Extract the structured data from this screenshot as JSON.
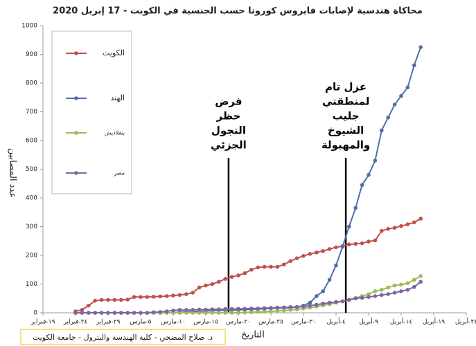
{
  "chart_data": {
    "type": "line",
    "title": "محاكاة هندسية لإصابات فايروس كورونا حسب الجنسية في الكويت -  17 إبريل 2020",
    "y_label": "عدد المصابين",
    "x_label": "التاريخ",
    "footer": "د. صلاح المضحي - كلية الهندسة والبترول - جامعة الكويت",
    "x": [
      5,
      6,
      7,
      8,
      9,
      10,
      11,
      12,
      13,
      14,
      15,
      16,
      17,
      18,
      19,
      20,
      21,
      22,
      23,
      24,
      25,
      26,
      27,
      28,
      29,
      30,
      31,
      32,
      33,
      34,
      35,
      36,
      37,
      38,
      39,
      40,
      41,
      42,
      43,
      44,
      45,
      46,
      47,
      48,
      49,
      50,
      51,
      52,
      53,
      54,
      55,
      56,
      57,
      58
    ],
    "series": [
      {
        "name": "الكويت",
        "color": "#c0504d",
        "values": [
          5,
          10,
          25,
          42,
          45,
          45,
          45,
          45,
          46,
          55,
          55,
          55,
          56,
          57,
          58,
          60,
          62,
          65,
          70,
          88,
          95,
          100,
          108,
          118,
          125,
          130,
          138,
          150,
          158,
          160,
          160,
          160,
          168,
          180,
          190,
          198,
          205,
          210,
          215,
          222,
          228,
          232,
          238,
          240,
          242,
          248,
          252,
          285,
          292,
          296,
          302,
          308,
          315,
          328
        ]
      },
      {
        "name": "الهند",
        "color": "#4f6fa8",
        "values": [
          0,
          0,
          0,
          0,
          0,
          0,
          0,
          0,
          0,
          0,
          0,
          0,
          0,
          0,
          0,
          0,
          2,
          3,
          4,
          5,
          6,
          7,
          8,
          9,
          10,
          10,
          11,
          12,
          13,
          14,
          15,
          16,
          17,
          18,
          20,
          25,
          35,
          58,
          75,
          115,
          165,
          230,
          300,
          365,
          445,
          480,
          530,
          635,
          680,
          725,
          755,
          785,
          862,
          925
        ]
      },
      {
        "name": "بنغلاديش",
        "color": "#9bbb59",
        "values": [
          0,
          0,
          0,
          0,
          0,
          0,
          0,
          0,
          0,
          0,
          0,
          0,
          0,
          0,
          0,
          0,
          0,
          0,
          0,
          0,
          0,
          0,
          0,
          0,
          0,
          0,
          1,
          2,
          3,
          4,
          5,
          6,
          8,
          10,
          12,
          15,
          18,
          22,
          26,
          30,
          35,
          40,
          45,
          52,
          58,
          65,
          75,
          80,
          88,
          95,
          98,
          103,
          115,
          128
        ]
      },
      {
        "name": "مصر",
        "color": "#8064a2",
        "values": [
          0,
          0,
          0,
          0,
          0,
          0,
          0,
          0,
          0,
          0,
          0,
          0,
          2,
          3,
          5,
          8,
          10,
          10,
          10,
          11,
          11,
          12,
          12,
          13,
          13,
          14,
          14,
          15,
          15,
          16,
          17,
          18,
          19,
          20,
          20,
          22,
          25,
          28,
          32,
          35,
          38,
          40,
          45,
          50,
          52,
          55,
          58,
          62,
          65,
          70,
          75,
          80,
          90,
          108
        ]
      }
    ],
    "xlim": [
      0,
      65
    ],
    "xticks": [
      {
        "value": 0,
        "label": "١٩-فبراير"
      },
      {
        "value": 5,
        "label": "٢٤-فبراير"
      },
      {
        "value": 10,
        "label": "٢٩-فبراير"
      },
      {
        "value": 15,
        "label": "٥-مارس"
      },
      {
        "value": 20,
        "label": "١٠-مارس"
      },
      {
        "value": 25,
        "label": "١٥-مارس"
      },
      {
        "value": 30,
        "label": "٢٠-مارس"
      },
      {
        "value": 35,
        "label": "٢٥-مارس"
      },
      {
        "value": 40,
        "label": "٣٠-مارس"
      },
      {
        "value": 45,
        "label": "٤-أبريل"
      },
      {
        "value": 50,
        "label": "٩-أبريل"
      },
      {
        "value": 55,
        "label": "١٤-أبريل"
      },
      {
        "value": 60,
        "label": "١٩-أبريل"
      },
      {
        "value": 65,
        "label": "٢٤-أبريل"
      }
    ],
    "ylim": [
      0,
      1000
    ],
    "yticks": [
      0,
      100,
      200,
      300,
      400,
      500,
      600,
      700,
      800,
      900,
      1000
    ],
    "annotations": [
      {
        "x": 28.5,
        "lines": [
          "فرض",
          "حظر",
          "التجول",
          "الجزئي"
        ]
      },
      {
        "x": 46.5,
        "lines": [
          "عزل تام",
          "لمنطقتي",
          "جليب",
          "الشيوخ",
          "والمهبولة"
        ]
      }
    ]
  }
}
